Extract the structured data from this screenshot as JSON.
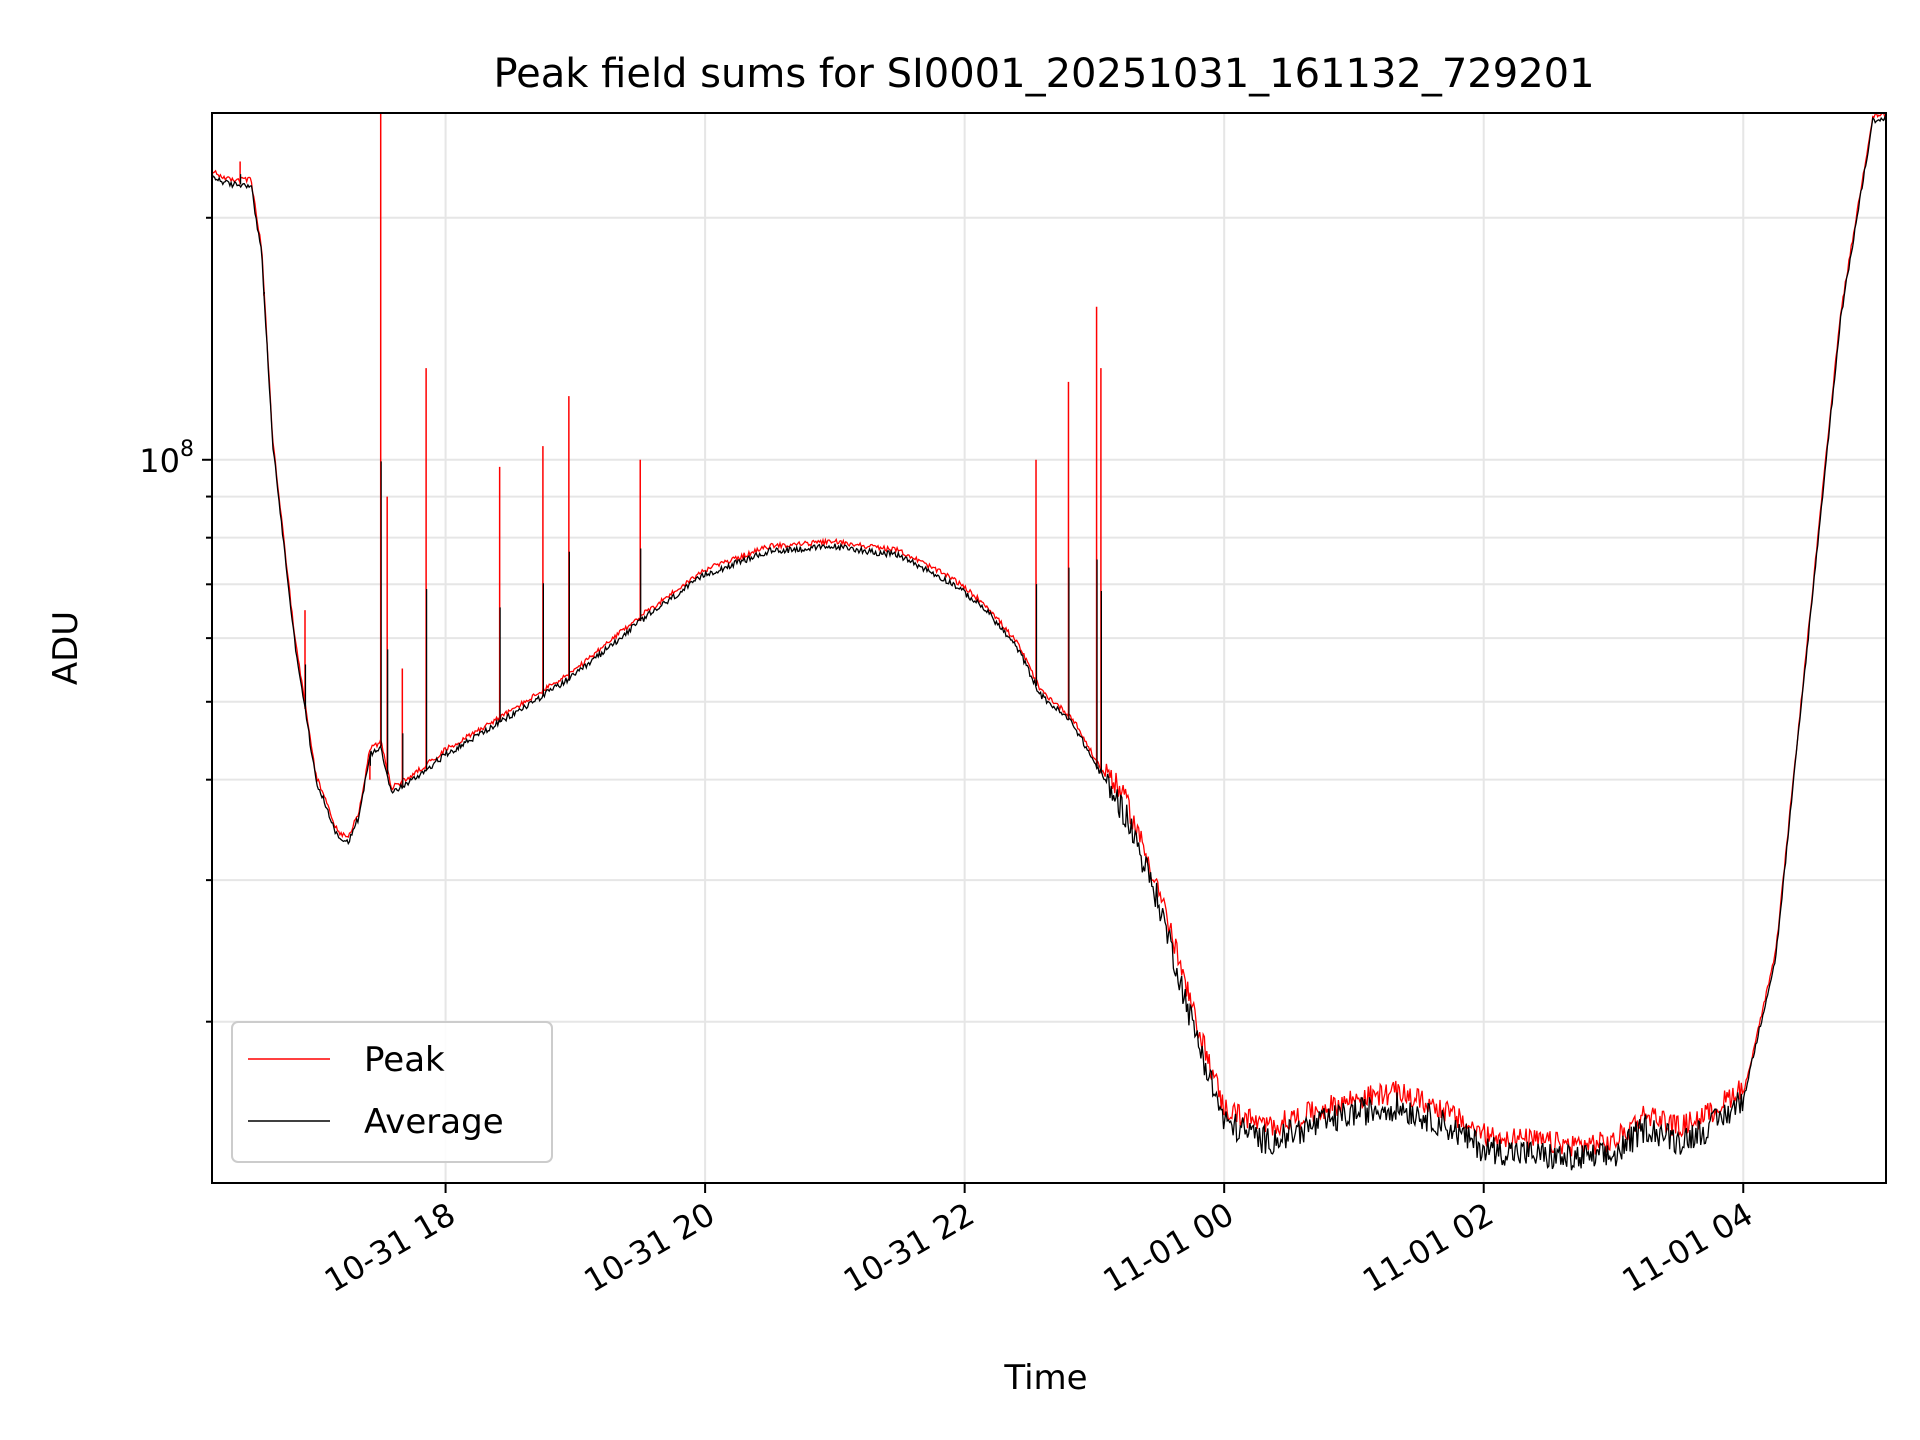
{
  "chart_data": {
    "type": "line",
    "title": "Peak field sums for SI0001_20251031_161132_729201",
    "xlabel": "Time",
    "ylabel": "ADU",
    "x_axis_type": "datetime",
    "x_range": [
      "2025-10-31 16:12",
      "2025-11-01 05:06"
    ],
    "y_scale": "log",
    "y_range": [
      12600000,
      270000000
    ],
    "y_tick_label": "10^8",
    "y_tick_label_base": "10",
    "y_tick_label_exp": "8",
    "y_tick_value": 100000000,
    "x_ticks": [
      {
        "t": "2025-10-31 18:00",
        "label": "10-31 18"
      },
      {
        "t": "2025-10-31 20:00",
        "label": "10-31 20"
      },
      {
        "t": "2025-10-31 22:00",
        "label": "10-31 22"
      },
      {
        "t": "2025-11-01 00:00",
        "label": "11-01 00"
      },
      {
        "t": "2025-11-01 02:00",
        "label": "11-01 02"
      },
      {
        "t": "2025-11-01 04:00",
        "label": "11-01 04"
      }
    ],
    "grid": true,
    "legend_position": "lower-left",
    "series": [
      {
        "name": "Peak",
        "color": "#ff0000",
        "style": "thin-line"
      },
      {
        "name": "Average",
        "color": "#000000",
        "style": "thin-line",
        "x": [
          "2025-10-31 16:12",
          "2025-10-31 16:20",
          "2025-10-31 16:30",
          "2025-10-31 16:35",
          "2025-10-31 16:40",
          "2025-10-31 16:50",
          "2025-10-31 17:00",
          "2025-10-31 17:10",
          "2025-10-31 17:15",
          "2025-10-31 17:20",
          "2025-10-31 17:25",
          "2025-10-31 17:30",
          "2025-10-31 17:35",
          "2025-10-31 17:45",
          "2025-10-31 18:00",
          "2025-10-31 18:30",
          "2025-10-31 19:00",
          "2025-10-31 19:30",
          "2025-10-31 20:00",
          "2025-10-31 20:30",
          "2025-10-31 21:00",
          "2025-10-31 21:30",
          "2025-10-31 21:55",
          "2025-10-31 22:10",
          "2025-10-31 22:25",
          "2025-10-31 22:35",
          "2025-10-31 22:50",
          "2025-10-31 23:00",
          "2025-10-31 23:15",
          "2025-10-31 23:30",
          "2025-10-31 23:45",
          "2025-11-01 00:00",
          "2025-11-01 00:20",
          "2025-11-01 00:40",
          "2025-11-01 01:00",
          "2025-11-01 01:20",
          "2025-11-01 01:40",
          "2025-11-01 02:00",
          "2025-11-01 02:20",
          "2025-11-01 02:40",
          "2025-11-01 03:00",
          "2025-11-01 03:15",
          "2025-11-01 03:30",
          "2025-11-01 03:45",
          "2025-11-01 04:00",
          "2025-11-01 04:15",
          "2025-11-01 04:30",
          "2025-11-01 04:45",
          "2025-11-01 05:00"
        ],
        "y": [
          225000000,
          220000000,
          220000000,
          180000000,
          105000000,
          60000000,
          40000000,
          34000000,
          33500000,
          36000000,
          43000000,
          44000000,
          38500000,
          40000000,
          43000000,
          48000000,
          54000000,
          63000000,
          72000000,
          77000000,
          78000000,
          76000000,
          70000000,
          65000000,
          58000000,
          51000000,
          47000000,
          42000000,
          36000000,
          28000000,
          20000000,
          15000000,
          14200000,
          14800000,
          15400000,
          15700000,
          15000000,
          13900000,
          13700000,
          13500000,
          13600000,
          14800000,
          14200000,
          14800000,
          16000000,
          24000000,
          60000000,
          150000000,
          265000000
        ]
      }
    ],
    "peak_spikes": [
      {
        "t": "2025-10-31 16:25",
        "y": 235000000
      },
      {
        "t": "2025-10-31 16:36",
        "y": 160000000
      },
      {
        "t": "2025-10-31 16:55",
        "y": 65000000
      },
      {
        "t": "2025-10-31 17:25",
        "y": 40000000
      },
      {
        "t": "2025-10-31 17:30",
        "y": 280000000
      },
      {
        "t": "2025-10-31 17:33",
        "y": 90000000
      },
      {
        "t": "2025-10-31 17:40",
        "y": 55000000
      },
      {
        "t": "2025-10-31 17:51",
        "y": 130000000
      },
      {
        "t": "2025-10-31 18:25",
        "y": 98000000
      },
      {
        "t": "2025-10-31 18:45",
        "y": 104000000
      },
      {
        "t": "2025-10-31 18:57",
        "y": 120000000
      },
      {
        "t": "2025-10-31 19:30",
        "y": 100000000
      },
      {
        "t": "2025-10-31 22:33",
        "y": 100000000
      },
      {
        "t": "2025-10-31 22:48",
        "y": 125000000
      },
      {
        "t": "2025-10-31 23:01",
        "y": 155000000
      },
      {
        "t": "2025-10-31 23:03",
        "y": 130000000
      }
    ]
  },
  "legend": {
    "peak_label": "Peak",
    "average_label": "Average"
  }
}
